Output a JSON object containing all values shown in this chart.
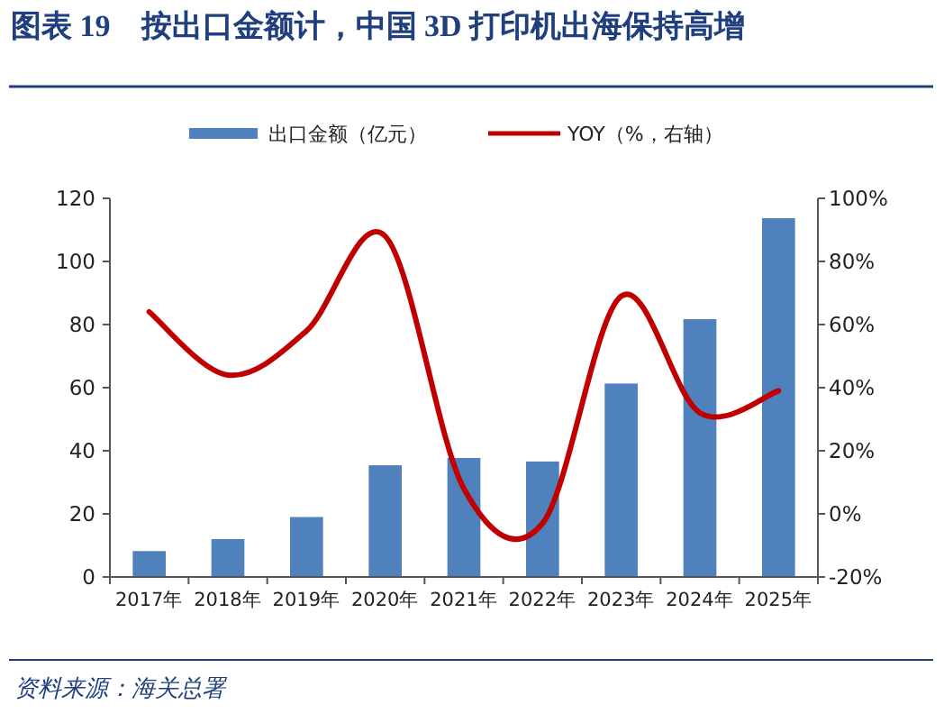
{
  "chart_data": {
    "type": "bar",
    "title": "图表 19　按出口金额计，中国 3D 打印机出海保持高增",
    "categories": [
      "2017年",
      "2018年",
      "2019年",
      "2020年",
      "2021年",
      "2022年",
      "2023年",
      "2024年",
      "2025年"
    ],
    "series": [
      {
        "name": "出口金额（亿元）",
        "color": "#4f81bd",
        "values": [
          8.2,
          12,
          19,
          35.4,
          37.7,
          36.6,
          61.3,
          81.7,
          113.7
        ]
      },
      {
        "name": "YOY（%，右轴）",
        "type": "line",
        "axis": "y2",
        "color": "#c00000",
        "values": [
          64,
          44,
          58,
          88,
          8,
          -3,
          69,
          32,
          39
        ]
      }
    ],
    "ylim": [
      0,
      120
    ],
    "yticks": [
      0,
      20,
      40,
      60,
      80,
      100,
      120
    ],
    "y2lim": [
      -20,
      100
    ],
    "y2ticks": [
      {
        "value": -20,
        "label": "-20%"
      },
      {
        "value": 0,
        "label": "0%"
      },
      {
        "value": 20,
        "label": "20%"
      },
      {
        "value": 40,
        "label": "40%"
      },
      {
        "value": 60,
        "label": "60%"
      },
      {
        "value": 80,
        "label": "80%"
      },
      {
        "value": 100,
        "label": "100%"
      }
    ],
    "legend": "top",
    "grid": false,
    "annotations": [
      "资料来源：海关总署"
    ]
  }
}
